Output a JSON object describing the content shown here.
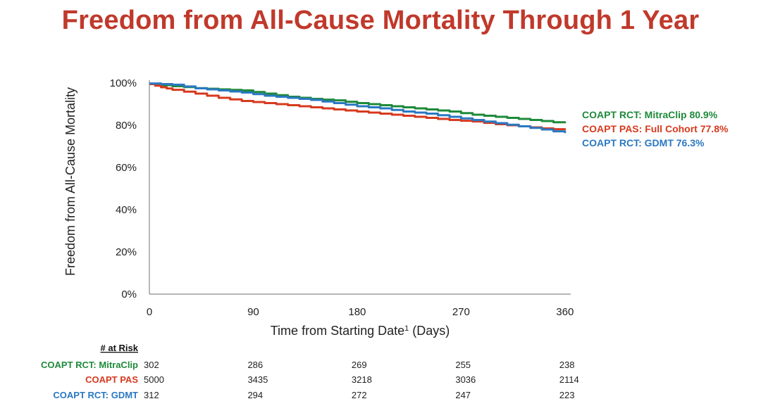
{
  "title": "Freedom from All-Cause Mortality Through 1 Year",
  "chart_data": {
    "type": "line",
    "ylabel": "Freedom from All-Cause Mortality",
    "xlabel": "Time from Starting Date",
    "xlabel_sup": "1",
    "xlabel_suffix": " (Days)",
    "xlim": [
      0,
      365
    ],
    "ylim": [
      0,
      100
    ],
    "x_ticks": [
      0,
      90,
      180,
      270,
      360
    ],
    "y_ticks": [
      0,
      20,
      40,
      60,
      80,
      100
    ],
    "y_tick_labels": [
      "0%",
      "20%",
      "40%",
      "60%",
      "80%",
      "100%"
    ],
    "grid": false,
    "legend_placement": "right-end",
    "series": [
      {
        "name": "COAPT RCT: MitraClip",
        "end_value_label": "80.9%",
        "color": "#1e8a3a",
        "x": [
          0,
          20,
          40,
          60,
          80,
          100,
          120,
          140,
          160,
          180,
          200,
          220,
          240,
          260,
          280,
          300,
          320,
          340,
          360
        ],
        "values": [
          99.5,
          98.5,
          97.6,
          97.0,
          96.5,
          95.0,
          93.5,
          92.5,
          91.8,
          90.5,
          89.5,
          88.5,
          87.5,
          86.5,
          85.0,
          84.0,
          83.0,
          82.0,
          80.9
        ]
      },
      {
        "name": "COAPT PAS: Full Cohort",
        "end_value_label": "77.8%",
        "color": "#d63a1e",
        "x": [
          0,
          10,
          20,
          40,
          60,
          80,
          100,
          120,
          140,
          160,
          180,
          200,
          220,
          240,
          260,
          280,
          300,
          320,
          340,
          360
        ],
        "values": [
          99.5,
          98.0,
          96.8,
          95.0,
          93.0,
          91.5,
          90.5,
          89.5,
          88.5,
          87.5,
          86.5,
          85.5,
          84.5,
          83.5,
          82.5,
          81.8,
          80.5,
          79.5,
          78.5,
          77.8
        ]
      },
      {
        "name": "COAPT RCT: GDMT",
        "end_value_label": "76.3%",
        "color": "#2a78c2",
        "x": [
          0,
          20,
          40,
          60,
          80,
          100,
          120,
          140,
          160,
          180,
          200,
          220,
          240,
          260,
          280,
          300,
          320,
          340,
          360
        ],
        "values": [
          99.8,
          99.2,
          97.5,
          96.5,
          95.5,
          94.0,
          93.0,
          92.0,
          90.5,
          89.0,
          88.0,
          86.5,
          85.5,
          84.0,
          82.5,
          81.0,
          79.5,
          78.0,
          76.3
        ]
      }
    ],
    "at_risk": {
      "header": "# at Risk",
      "x": [
        0,
        90,
        180,
        270,
        360
      ],
      "rows": [
        {
          "label": "COAPT RCT: MitraClip",
          "color": "#1e8a3a",
          "values": [
            "302",
            "286",
            "269",
            "255",
            "238"
          ]
        },
        {
          "label": "COAPT PAS",
          "color": "#d63a1e",
          "values": [
            "5000",
            "3435",
            "3218",
            "3036",
            "2114"
          ]
        },
        {
          "label": "COAPT RCT: GDMT",
          "color": "#2a78c2",
          "values": [
            "312",
            "294",
            "272",
            "247",
            "223"
          ]
        }
      ]
    }
  }
}
